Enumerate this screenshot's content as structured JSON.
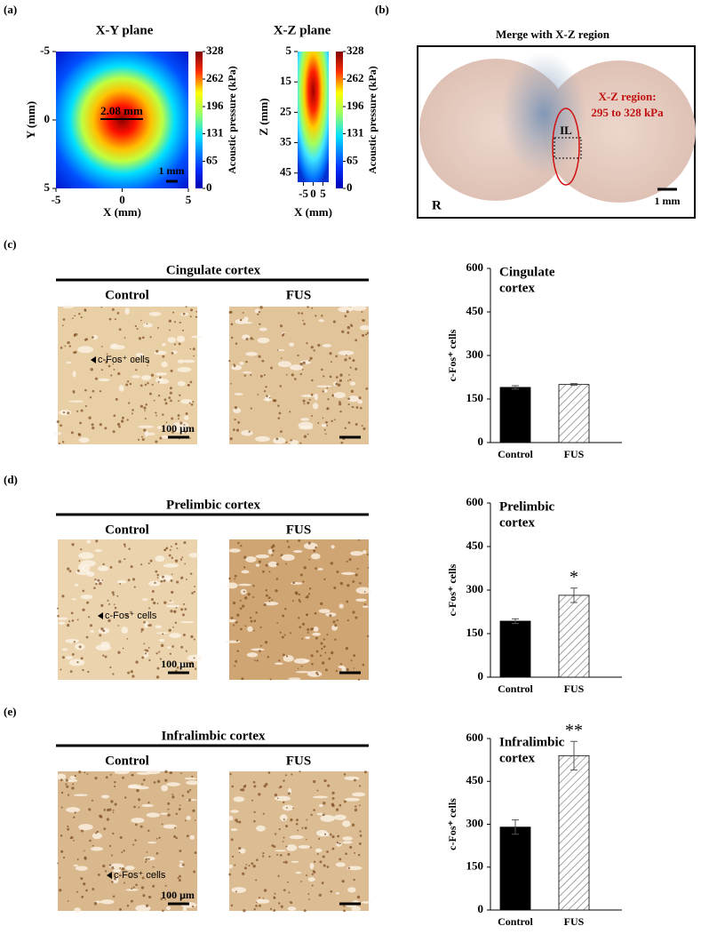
{
  "panel_labels": [
    "(a)",
    "(b)",
    "(c)",
    "(d)",
    "(e)"
  ],
  "merge": {
    "title": "Merge with X-Z region",
    "region_label": [
      "X-Z region:",
      "295 to 328 kPa"
    ],
    "il": "IL",
    "side": "R",
    "scale": "1 mm"
  },
  "micrographs": [
    {
      "title": "Cingulate cortex",
      "groups": [
        "Control",
        "FUS"
      ],
      "cell_label": "c-Fos⁺ cells",
      "scale": "100 μm"
    },
    {
      "title": "Prelimbic cortex",
      "groups": [
        "Control",
        "FUS"
      ],
      "cell_label": "c-Fos⁺ cells",
      "scale": "100 μm"
    },
    {
      "title": "Infralimbic cortex",
      "groups": [
        "Control",
        "FUS"
      ],
      "cell_label": "c-Fos⁺ cells",
      "scale": "100 μm"
    }
  ],
  "chart_data": [
    {
      "type": "heatmap",
      "title": "X-Y plane",
      "xlabel": "X (mm)",
      "ylabel": "Y (mm)",
      "xlim": [
        -5,
        5
      ],
      "ylim": [
        -5,
        5
      ],
      "xticks": [
        -5,
        0,
        5
      ],
      "yticks": [
        -5,
        0,
        5
      ],
      "colorbar": {
        "label": "Acoustic pressure (kPa)",
        "lim": [
          0,
          328
        ],
        "ticks": [
          0,
          65,
          131,
          196,
          262,
          328
        ]
      },
      "annotations": [
        "2.08 mm",
        "1 mm"
      ]
    },
    {
      "type": "heatmap",
      "title": "X-Z plane",
      "xlabel": "X (mm)",
      "ylabel": "Z (mm)",
      "xlim": [
        -8,
        8
      ],
      "ylim": [
        5,
        48
      ],
      "xticks": [
        -5,
        0,
        5
      ],
      "yticks": [
        5,
        15,
        25,
        35,
        45
      ],
      "colorbar": {
        "label": "Acoustic pressure (kPa)",
        "lim": [
          0,
          328
        ],
        "ticks": [
          0,
          65,
          131,
          196,
          262,
          328
        ]
      }
    },
    {
      "type": "bar",
      "title_lines": [
        "Cingulate",
        "cortex"
      ],
      "ylabel": "c-Fos⁺ cells",
      "categories": [
        "Control",
        "FUS"
      ],
      "values": [
        190,
        200
      ],
      "errors": [
        6,
        3
      ],
      "colors": [
        "#000000",
        "#ffffff"
      ],
      "hatch": [
        false,
        true
      ],
      "ylim": [
        0,
        600
      ],
      "yticks": [
        0,
        150,
        300,
        450,
        600
      ]
    },
    {
      "type": "bar",
      "title_lines": [
        "Prelimbic",
        "cortex"
      ],
      "ylabel": "c-Fos⁺ cells",
      "categories": [
        "Control",
        "FUS"
      ],
      "values": [
        193,
        282
      ],
      "errors": [
        8,
        25
      ],
      "colors": [
        "#000000",
        "#ffffff"
      ],
      "hatch": [
        false,
        true
      ],
      "ylim": [
        0,
        600
      ],
      "yticks": [
        0,
        150,
        300,
        450,
        600
      ],
      "significance": [
        null,
        "*"
      ]
    },
    {
      "type": "bar",
      "title_lines": [
        "Infralimbic",
        "cortex"
      ],
      "ylabel": "c-Fos⁺ cells",
      "categories": [
        "Control",
        "FUS"
      ],
      "values": [
        290,
        540
      ],
      "errors": [
        25,
        50
      ],
      "colors": [
        "#000000",
        "#ffffff"
      ],
      "hatch": [
        false,
        true
      ],
      "ylim": [
        0,
        600
      ],
      "yticks": [
        0,
        150,
        300,
        450,
        600
      ],
      "significance": [
        null,
        "**"
      ]
    }
  ]
}
